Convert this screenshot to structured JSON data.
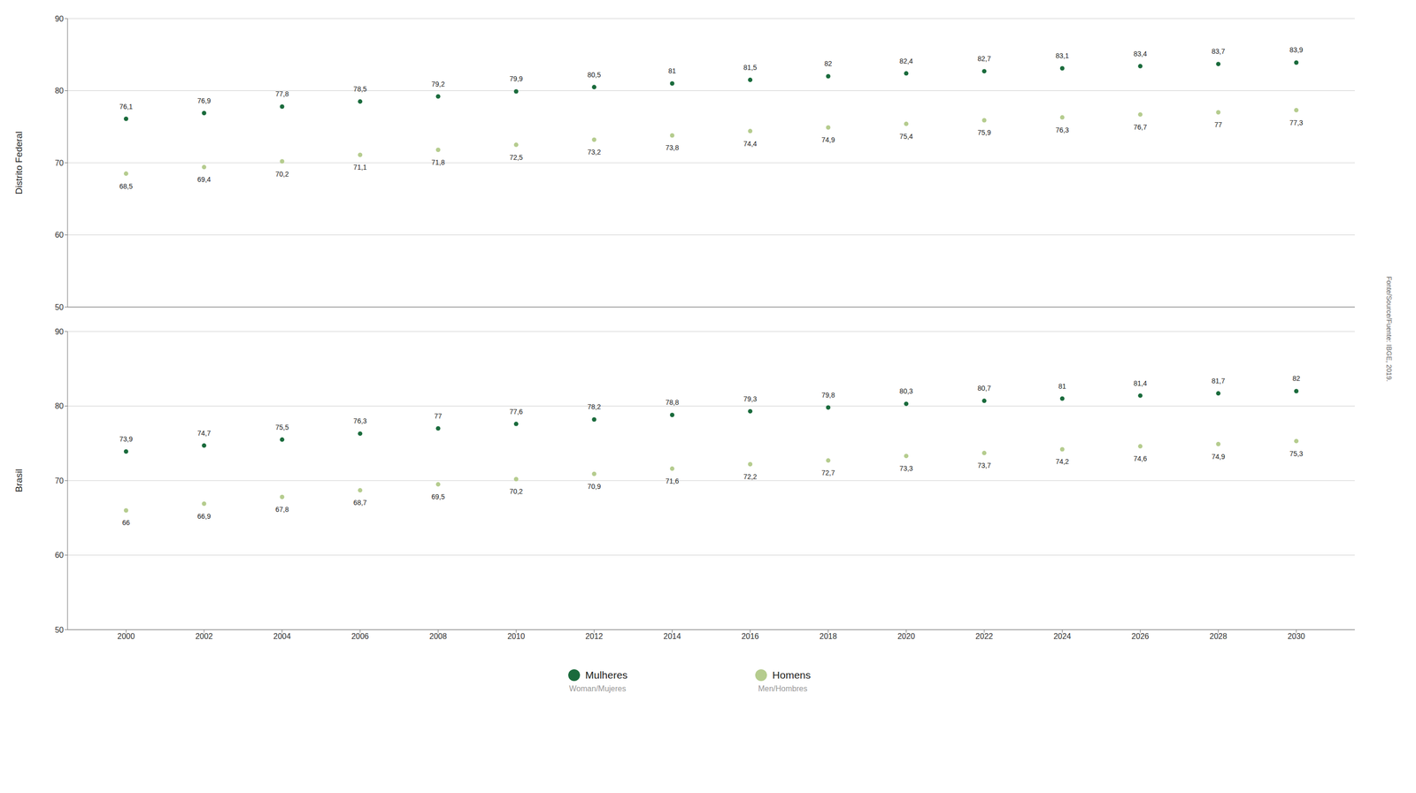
{
  "chart_data": [
    {
      "type": "scatter",
      "y_label": "Distrito Federal",
      "x": [
        2000,
        2002,
        2004,
        2006,
        2008,
        2010,
        2012,
        2014,
        2016,
        2018,
        2020,
        2022,
        2024,
        2026,
        2028,
        2030
      ],
      "xlim": [
        1998.5,
        2031.5
      ],
      "ylim": [
        50,
        90
      ],
      "yticks": [
        50,
        60,
        70,
        80,
        90
      ],
      "grid": true,
      "data_labels": true,
      "tick_labels": "y",
      "series": [
        {
          "name": "Mulheres",
          "color": "#1a6b3c",
          "values": [
            76.1,
            76.9,
            77.8,
            78.5,
            79.2,
            79.9,
            80.5,
            81.0,
            81.5,
            82.0,
            82.4,
            82.7,
            83.1,
            83.4,
            83.7,
            83.9
          ],
          "value_labels": [
            "76,1",
            "76,9",
            "77,8",
            "78,5",
            "79,2",
            "79,9",
            "80,5",
            "81",
            "81,5",
            "82",
            "82,4",
            "82,7",
            "83,1",
            "83,4",
            "83,7",
            "83,9"
          ]
        },
        {
          "name": "Homens",
          "color": "#b5cc8e",
          "values": [
            68.5,
            69.4,
            70.2,
            71.1,
            71.8,
            72.5,
            73.2,
            73.8,
            74.4,
            74.9,
            75.4,
            75.9,
            76.3,
            76.7,
            77.0,
            77.3
          ],
          "value_labels": [
            "68,5",
            "69,4",
            "70,2",
            "71,1",
            "71,8",
            "72,5",
            "73,2",
            "73,8",
            "74,4",
            "74,9",
            "75,4",
            "75,9",
            "76,3",
            "76,7",
            "77",
            "77,3"
          ]
        }
      ]
    },
    {
      "type": "scatter",
      "y_label": "Brasil",
      "x": [
        2000,
        2002,
        2004,
        2006,
        2008,
        2010,
        2012,
        2014,
        2016,
        2018,
        2020,
        2022,
        2024,
        2026,
        2028,
        2030
      ],
      "xlim": [
        1998.5,
        2031.5
      ],
      "xticks": [
        2000,
        2002,
        2004,
        2006,
        2008,
        2010,
        2012,
        2014,
        2016,
        2018,
        2020,
        2022,
        2024,
        2026,
        2028,
        2030
      ],
      "ylim": [
        50,
        90
      ],
      "yticks": [
        50,
        60,
        70,
        80,
        90
      ],
      "grid": true,
      "data_labels": true,
      "legend": "bottom",
      "series": [
        {
          "name": "Mulheres",
          "color": "#1a6b3c",
          "values": [
            73.9,
            74.7,
            75.5,
            76.3,
            77.0,
            77.6,
            78.2,
            78.8,
            79.3,
            79.8,
            80.3,
            80.7,
            81.0,
            81.4,
            81.7,
            82.0
          ],
          "value_labels": [
            "73,9",
            "74,7",
            "75,5",
            "76,3",
            "77",
            "77,6",
            "78,2",
            "78,8",
            "79,3",
            "79,8",
            "80,3",
            "80,7",
            "81",
            "81,4",
            "81,7",
            "82"
          ]
        },
        {
          "name": "Homens",
          "color": "#b5cc8e",
          "values": [
            66.0,
            66.9,
            67.8,
            68.7,
            69.5,
            70.2,
            70.9,
            71.6,
            72.2,
            72.7,
            73.3,
            73.7,
            74.2,
            74.6,
            74.9,
            75.3
          ],
          "value_labels": [
            "66",
            "66,9",
            "67,8",
            "68,7",
            "69,5",
            "70,2",
            "70,9",
            "71,6",
            "72,2",
            "72,7",
            "73,3",
            "73,7",
            "74,2",
            "74,6",
            "74,9",
            "75,3"
          ]
        }
      ],
      "annotations": [
        {
          "text": "Woman/Mujeres",
          "series": "Mulheres"
        },
        {
          "text": "Men/Hombres",
          "series": "Homens"
        },
        {
          "text": "Fonte/Source/Fuente: IBGE, 2019."
        }
      ]
    }
  ]
}
